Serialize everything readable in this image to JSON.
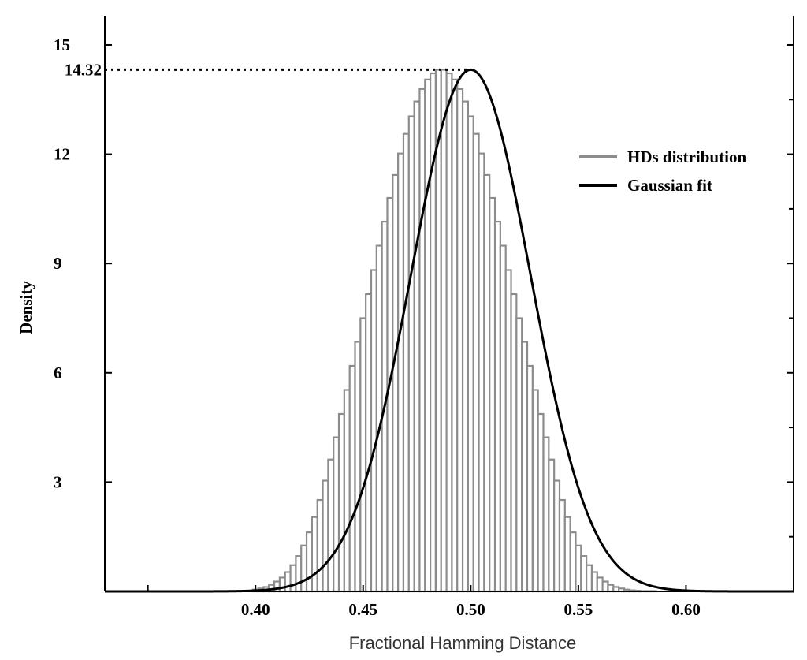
{
  "chart_data": {
    "type": "bar",
    "title": "",
    "xlabel": "Fractional Hamming Distance",
    "ylabel": "Density",
    "xlim": [
      0.33,
      0.65
    ],
    "ylim": [
      0,
      15.8
    ],
    "x_ticks": [
      0.4,
      0.45,
      0.5,
      0.55,
      0.6
    ],
    "x_tick_labels": [
      "0.40",
      "0.45",
      "0.50",
      "0.55",
      "0.60"
    ],
    "y_ticks": [
      3,
      6,
      9,
      12,
      15
    ],
    "y_tick_labels": [
      "3",
      "6",
      "9",
      "12",
      "15"
    ],
    "peak_annotation": {
      "value": 14.32,
      "label": "14.32",
      "x": 0.5,
      "style": "dotted"
    },
    "grid": false,
    "legend_position": "top-right",
    "series": [
      {
        "name": "HDs distribution",
        "kind": "histogram",
        "color": "#8c8c8c"
      },
      {
        "name": "Gaussian fit",
        "kind": "line",
        "color": "#000000",
        "mean": 0.5,
        "std": 0.0278
      }
    ],
    "histogram": {
      "bin_width": 0.0025,
      "x": [
        0.4,
        0.4025,
        0.405,
        0.4075,
        0.41,
        0.4125,
        0.415,
        0.4175,
        0.42,
        0.4225,
        0.425,
        0.4275,
        0.43,
        0.4325,
        0.435,
        0.4375,
        0.44,
        0.4425,
        0.445,
        0.4475,
        0.45,
        0.4525,
        0.455,
        0.4575,
        0.46,
        0.4625,
        0.465,
        0.4675,
        0.47,
        0.4725,
        0.475,
        0.4775,
        0.48,
        0.4825,
        0.485,
        0.4875,
        0.49,
        0.4925,
        0.495,
        0.4975,
        0.5,
        0.5025,
        0.505,
        0.5075,
        0.51,
        0.5125,
        0.515,
        0.5175,
        0.52,
        0.5225,
        0.525,
        0.5275,
        0.53,
        0.5325,
        0.535,
        0.5375,
        0.54,
        0.5425,
        0.545,
        0.5475,
        0.55,
        0.5525,
        0.555,
        0.5575,
        0.56,
        0.5625,
        0.565,
        0.5675,
        0.57,
        0.5725,
        0.575,
        0.5775,
        0.58,
        0.5825,
        0.585,
        0.5875,
        0.59,
        0.5925,
        0.595,
        0.5975,
        0.6
      ],
      "values": [
        0.05,
        0.08,
        0.12,
        0.18,
        0.27,
        0.38,
        0.53,
        0.72,
        0.97,
        1.26,
        1.62,
        2.04,
        2.51,
        3.04,
        3.62,
        4.23,
        4.87,
        5.53,
        6.19,
        6.85,
        7.5,
        8.16,
        8.82,
        9.49,
        10.15,
        10.8,
        11.43,
        12.02,
        12.56,
        13.04,
        13.45,
        13.79,
        14.05,
        14.22,
        14.32,
        14.32,
        14.22,
        14.05,
        13.79,
        13.45,
        13.04,
        12.56,
        12.02,
        11.43,
        10.8,
        10.15,
        9.49,
        8.82,
        8.16,
        7.5,
        6.85,
        6.19,
        5.53,
        4.87,
        4.23,
        3.62,
        3.04,
        2.51,
        2.04,
        1.62,
        1.26,
        0.97,
        0.72,
        0.53,
        0.38,
        0.27,
        0.18,
        0.12,
        0.08,
        0.05,
        0.03,
        0.02,
        0.01,
        0.01,
        0.01,
        0.0,
        0.0,
        0.0,
        0.0,
        0.0,
        0.0
      ]
    }
  }
}
